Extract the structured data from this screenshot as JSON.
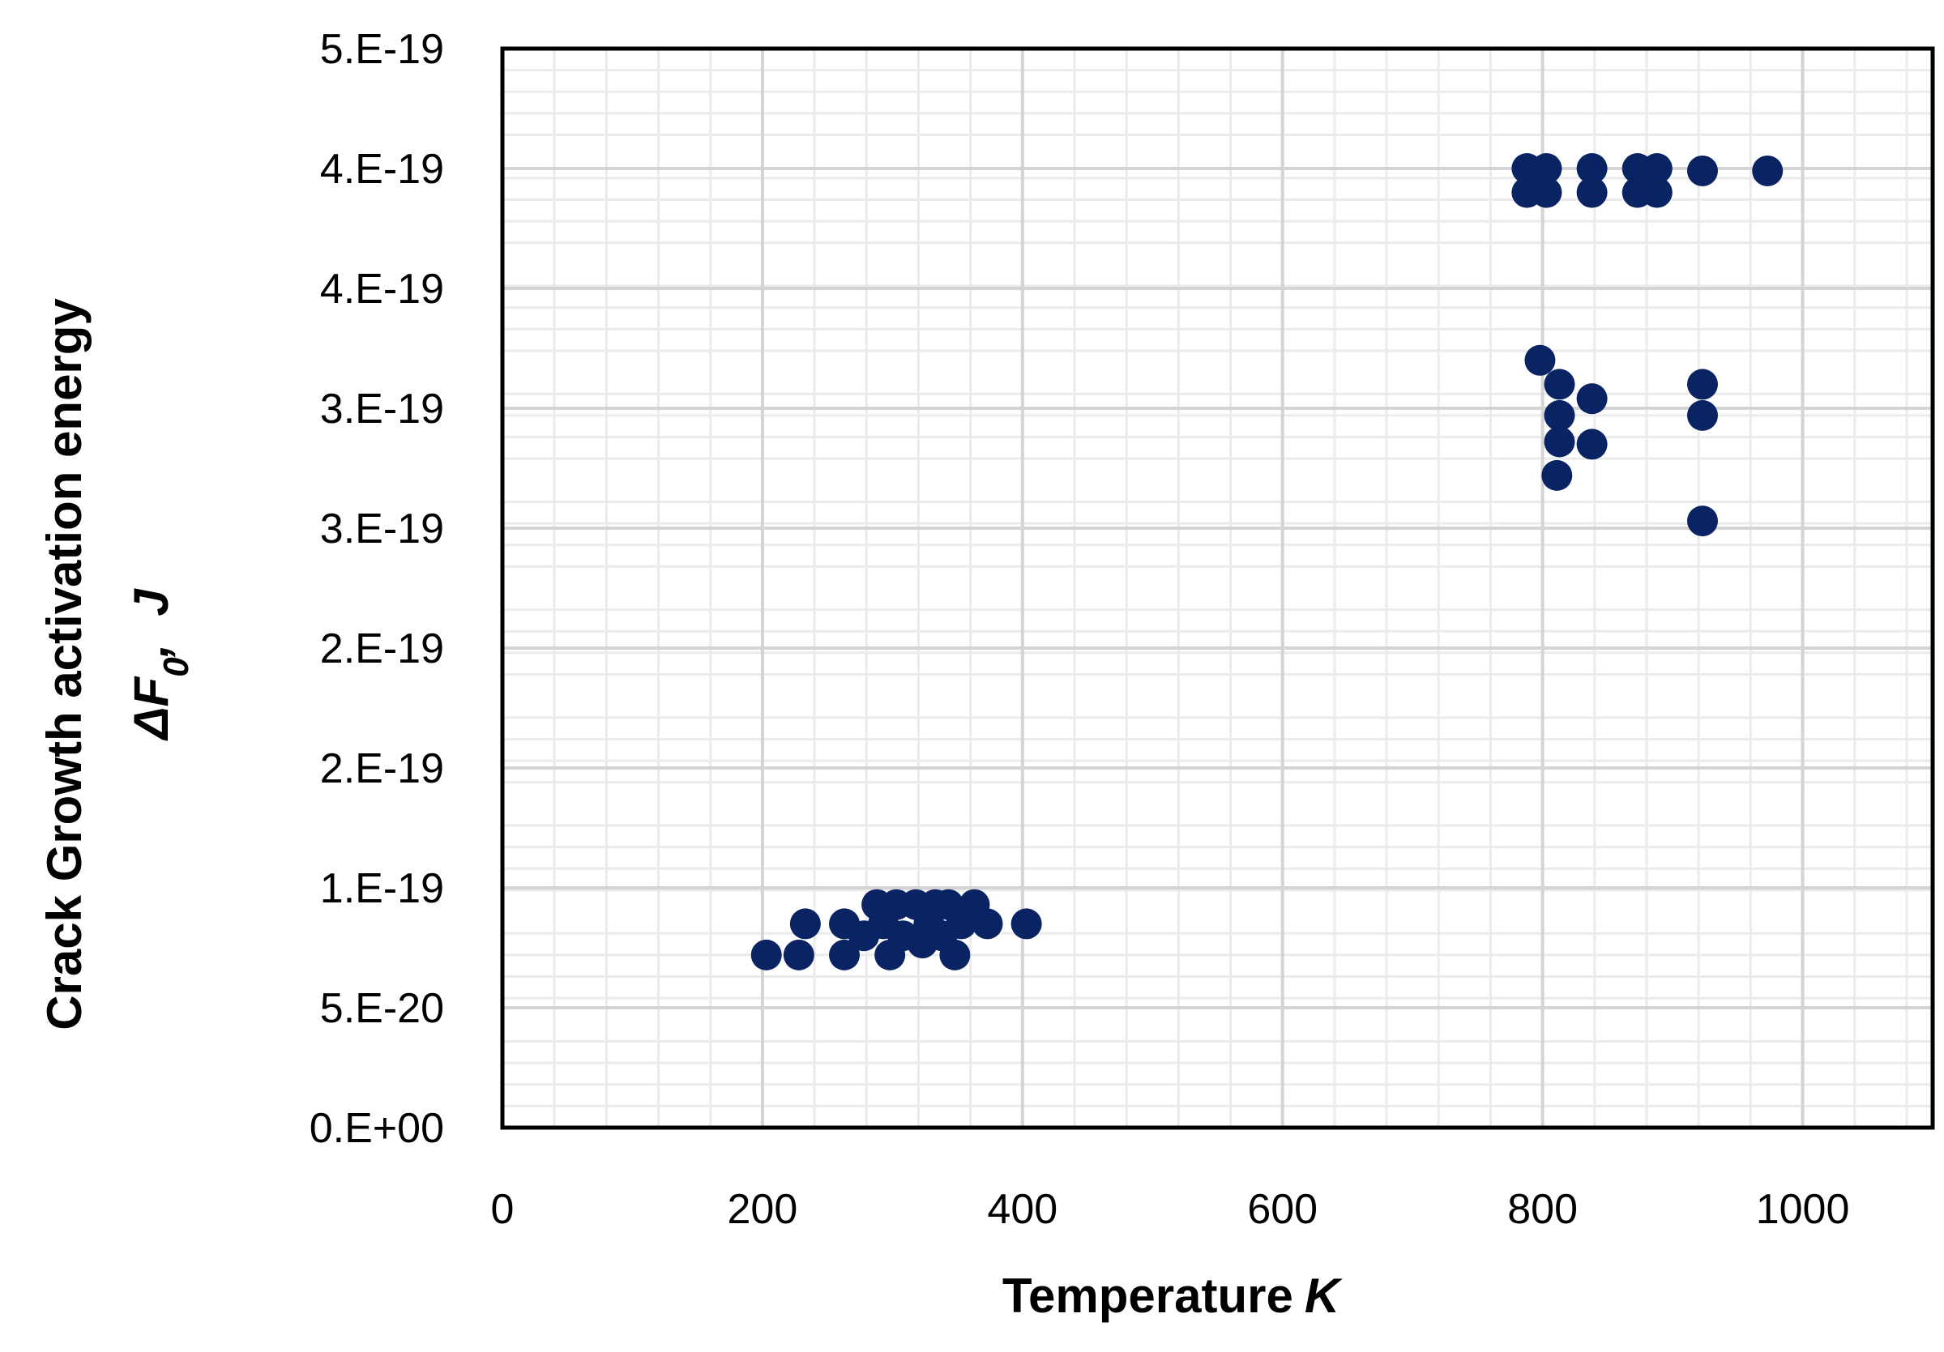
{
  "chart_data": {
    "type": "scatter",
    "title": "",
    "xlabel": "Temperature",
    "xlabel_unit": "K",
    "ylabel_line1": "Crack Growth activation energy",
    "ylabel_symbol": "ΔF",
    "ylabel_subscript": "0",
    "ylabel_unit": "J",
    "xlim": [
      0,
      1100
    ],
    "ylim": [
      0,
      4.5e-19
    ],
    "x_ticks": [
      0,
      200,
      400,
      600,
      800,
      1000
    ],
    "x_tick_labels": [
      "0",
      "200",
      "400",
      "600",
      "800",
      "1000"
    ],
    "y_ticks": [
      0,
      5e-20,
      1e-19,
      1.5e-19,
      2e-19,
      2.5e-19,
      3e-19,
      3.5e-19,
      4e-19,
      4.5e-19
    ],
    "y_tick_labels": [
      "0.E+00",
      "5.E-20",
      "1.E-19",
      "2.E-19",
      "2.E-19",
      "3.E-19",
      "3.E-19",
      "4.E-19",
      "4.E-19",
      "5.E-19"
    ],
    "grid": true,
    "minor_grid": true,
    "legend": "none",
    "marker_color": "#0a2463",
    "points": [
      {
        "x": 203,
        "y": 7.2e-20
      },
      {
        "x": 228,
        "y": 7.2e-20
      },
      {
        "x": 233,
        "y": 8.5e-20
      },
      {
        "x": 263,
        "y": 7.2e-20
      },
      {
        "x": 263,
        "y": 8.5e-20
      },
      {
        "x": 278,
        "y": 8e-20
      },
      {
        "x": 288,
        "y": 9.3e-20
      },
      {
        "x": 293,
        "y": 8.5e-20
      },
      {
        "x": 298,
        "y": 7.2e-20
      },
      {
        "x": 303,
        "y": 9.3e-20
      },
      {
        "x": 308,
        "y": 8e-20
      },
      {
        "x": 318,
        "y": 9.3e-20
      },
      {
        "x": 323,
        "y": 7.7e-20
      },
      {
        "x": 328,
        "y": 8.5e-20
      },
      {
        "x": 333,
        "y": 9.3e-20
      },
      {
        "x": 338,
        "y": 8e-20
      },
      {
        "x": 343,
        "y": 9.3e-20
      },
      {
        "x": 348,
        "y": 7.2e-20
      },
      {
        "x": 353,
        "y": 8.5e-20
      },
      {
        "x": 363,
        "y": 9.3e-20
      },
      {
        "x": 373,
        "y": 8.5e-20
      },
      {
        "x": 403,
        "y": 8.5e-20
      },
      {
        "x": 788,
        "y": 3.9e-19
      },
      {
        "x": 788,
        "y": 4e-19
      },
      {
        "x": 803,
        "y": 3.9e-19
      },
      {
        "x": 803,
        "y": 4e-19
      },
      {
        "x": 838,
        "y": 3.9e-19
      },
      {
        "x": 838,
        "y": 4e-19
      },
      {
        "x": 873,
        "y": 3.9e-19
      },
      {
        "x": 873,
        "y": 4e-19
      },
      {
        "x": 888,
        "y": 3.9e-19
      },
      {
        "x": 888,
        "y": 4e-19
      },
      {
        "x": 923,
        "y": 3.99e-19
      },
      {
        "x": 973,
        "y": 3.99e-19
      },
      {
        "x": 798,
        "y": 3.2e-19
      },
      {
        "x": 813,
        "y": 3.1e-19
      },
      {
        "x": 813,
        "y": 2.97e-19
      },
      {
        "x": 813,
        "y": 2.86e-19
      },
      {
        "x": 811,
        "y": 2.72e-19
      },
      {
        "x": 838,
        "y": 3.04e-19
      },
      {
        "x": 838,
        "y": 2.85e-19
      },
      {
        "x": 923,
        "y": 3.1e-19
      },
      {
        "x": 923,
        "y": 2.97e-19
      },
      {
        "x": 923,
        "y": 2.53e-19
      }
    ]
  }
}
